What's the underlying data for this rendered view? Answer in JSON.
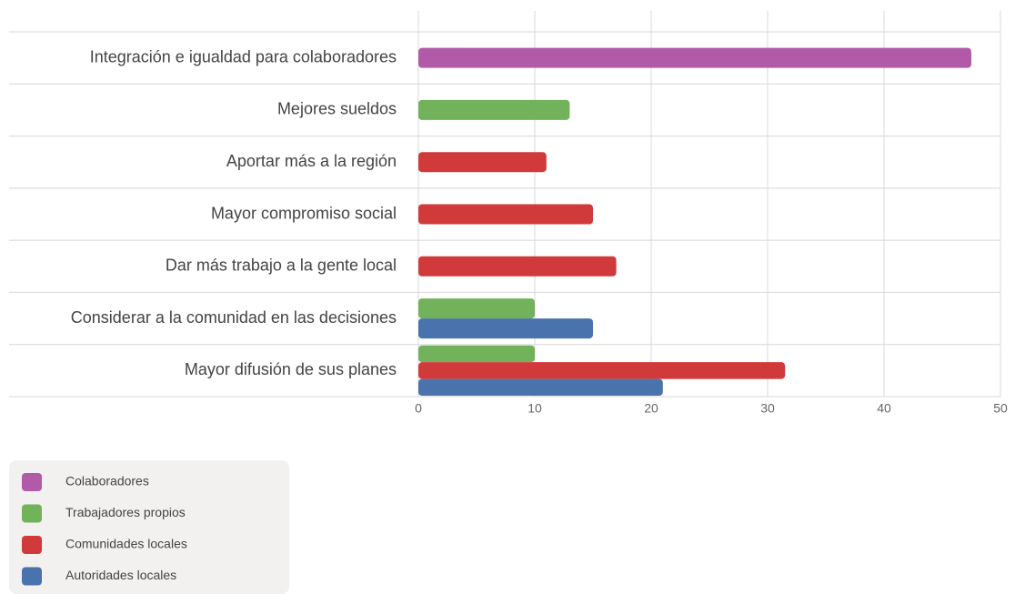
{
  "chart_data": {
    "type": "bar",
    "orientation": "horizontal",
    "categories": [
      "Integración e igualdad para colaboradores",
      "Mejores sueldos",
      "Aportar más a la región",
      "Mayor compromiso social",
      "Dar más trabajo a la gente local",
      "Considerar a la comunidad en las decisiones",
      "Mayor difusión de sus planes"
    ],
    "series": [
      {
        "name": "Colaboradores",
        "color": "#b05aa8",
        "values": [
          47.5,
          null,
          null,
          null,
          null,
          null,
          null
        ]
      },
      {
        "name": "Trabajadores propios",
        "color": "#72b25a",
        "values": [
          null,
          13,
          null,
          null,
          null,
          10,
          10
        ]
      },
      {
        "name": "Comunidades locales",
        "color": "#d13a3a",
        "values": [
          null,
          null,
          11,
          15,
          17,
          null,
          31.5
        ]
      },
      {
        "name": "Autoridades locales",
        "color": "#4a72ad",
        "values": [
          null,
          null,
          null,
          null,
          null,
          15,
          21
        ]
      }
    ],
    "xlim": [
      0,
      50
    ],
    "xticks": [
      0,
      10,
      20,
      30,
      40,
      50
    ],
    "grid": true
  }
}
